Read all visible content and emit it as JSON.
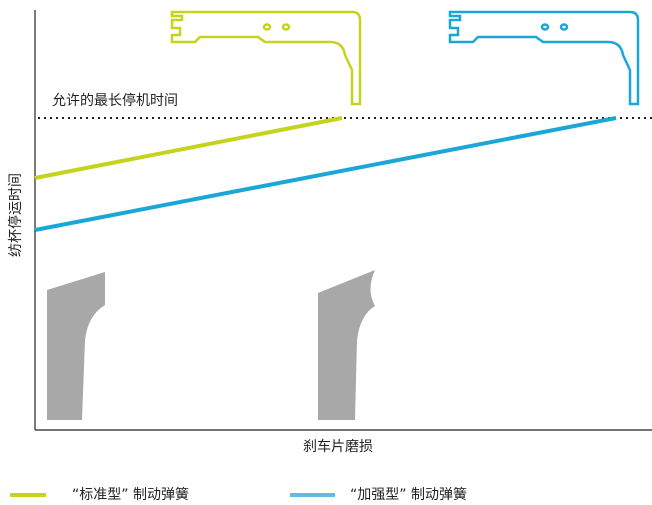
{
  "annotation": "允许的最长停机时间",
  "y_axis_label": "纺杯停运时间",
  "x_axis_label": "刹车片磨损",
  "legend": [
    {
      "label": "“标准型” 制动弹簧"
    },
    {
      "label": "“加强型” 制动弹簧"
    }
  ]
}
